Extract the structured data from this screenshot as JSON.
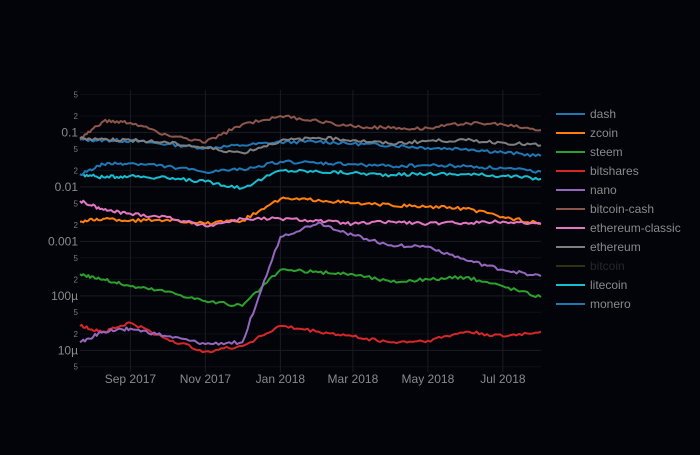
{
  "chart_data": {
    "type": "line",
    "title": "",
    "xlabel": "",
    "ylabel": "",
    "yscale": "log",
    "ylim": [
      4e-06,
      0.6
    ],
    "xlim": [
      "2017-07-22",
      "2018-08-01"
    ],
    "grid": true,
    "legend_position": "right",
    "x_ticks": [
      "2017-09-01",
      "2017-11-01",
      "2018-01-01",
      "2018-03-01",
      "2018-05-01",
      "2018-07-01"
    ],
    "x_tick_labels": [
      "Sep 2017",
      "Nov 2017",
      "Jan 2018",
      "Mar 2018",
      "May 2018",
      "Jul 2018"
    ],
    "y_major_ticks": [
      0.1,
      0.01,
      0.001,
      0.0001,
      1e-05
    ],
    "y_major_labels": [
      "0.1",
      "0.01",
      "0.001",
      "100µ",
      "10µ"
    ],
    "y_minor_ticks": [
      0.5,
      0.2,
      0.05,
      0.02,
      0.005,
      0.002,
      0.0005,
      0.0002,
      5e-05,
      2e-05,
      5e-06
    ],
    "y_minor_labels": [
      "5",
      "2",
      "5",
      "2",
      "5",
      "2",
      "5",
      "2",
      "5",
      "2",
      "5"
    ],
    "series": [
      {
        "name": "dash",
        "color": "#1f77b4",
        "visible": true,
        "x": [
          "2017-07-22",
          "2017-08-10",
          "2017-09-01",
          "2017-10-01",
          "2017-11-01",
          "2017-12-01",
          "2018-01-01",
          "2018-02-01",
          "2018-03-01",
          "2018-04-01",
          "2018-05-01",
          "2018-06-01",
          "2018-07-01",
          "2018-08-01"
        ],
        "y": [
          0.073,
          0.072,
          0.07,
          0.061,
          0.052,
          0.058,
          0.066,
          0.068,
          0.062,
          0.058,
          0.052,
          0.05,
          0.043,
          0.037
        ]
      },
      {
        "name": "zcoin",
        "color": "#ff7f0e",
        "visible": true,
        "x": [
          "2017-07-22",
          "2017-08-10",
          "2017-09-01",
          "2017-10-01",
          "2017-11-01",
          "2017-12-01",
          "2018-01-01",
          "2018-02-01",
          "2018-03-01",
          "2018-04-01",
          "2018-05-01",
          "2018-06-01",
          "2018-07-01",
          "2018-08-01"
        ],
        "y": [
          0.0023,
          0.0026,
          0.0024,
          0.0025,
          0.0021,
          0.0024,
          0.006,
          0.0058,
          0.005,
          0.0046,
          0.0043,
          0.004,
          0.0028,
          0.0021
        ]
      },
      {
        "name": "steem",
        "color": "#2ca02c",
        "visible": true,
        "x": [
          "2017-07-22",
          "2017-08-10",
          "2017-09-01",
          "2017-10-01",
          "2017-11-01",
          "2017-12-01",
          "2018-01-01",
          "2018-02-01",
          "2018-03-01",
          "2018-04-01",
          "2018-05-01",
          "2018-06-01",
          "2018-07-01",
          "2018-08-01"
        ],
        "y": [
          0.00025,
          0.0002,
          0.00015,
          0.00012,
          8e-05,
          6.5e-05,
          0.0003,
          0.00027,
          0.00025,
          0.00018,
          0.0002,
          0.00022,
          0.00015,
          9.5e-05
        ]
      },
      {
        "name": "bitshares",
        "color": "#d62728",
        "visible": true,
        "x": [
          "2017-07-22",
          "2017-08-10",
          "2017-09-01",
          "2017-10-01",
          "2017-11-01",
          "2017-12-01",
          "2018-01-01",
          "2018-02-01",
          "2018-03-01",
          "2018-04-01",
          "2018-05-01",
          "2018-06-01",
          "2018-07-01",
          "2018-08-01"
        ],
        "y": [
          2.8e-05,
          2.2e-05,
          3.2e-05,
          1.6e-05,
          9.5e-06,
          1.2e-05,
          2.8e-05,
          2.2e-05,
          1.8e-05,
          1.4e-05,
          1.5e-05,
          2.2e-05,
          1.8e-05,
          2.2e-05
        ]
      },
      {
        "name": "nano",
        "color": "#9467bd",
        "visible": true,
        "x": [
          "2017-07-22",
          "2017-08-10",
          "2017-09-01",
          "2017-10-01",
          "2017-11-01",
          "2017-12-01",
          "2018-01-01",
          "2018-02-01",
          "2018-03-01",
          "2018-04-01",
          "2018-05-01",
          "2018-06-01",
          "2018-07-01",
          "2018-08-01"
        ],
        "y": [
          1.4e-05,
          2.2e-05,
          2.5e-05,
          1.8e-05,
          1.3e-05,
          1.4e-05,
          0.0012,
          0.0022,
          0.0013,
          0.00085,
          0.0008,
          0.00045,
          0.0003,
          0.00023
        ]
      },
      {
        "name": "bitcoin-cash",
        "color": "#8c564b",
        "visible": true,
        "x": [
          "2017-07-22",
          "2017-08-10",
          "2017-09-01",
          "2017-10-01",
          "2017-11-01",
          "2017-12-01",
          "2018-01-01",
          "2018-02-01",
          "2018-03-01",
          "2018-04-01",
          "2018-05-01",
          "2018-06-01",
          "2018-07-01",
          "2018-08-01"
        ],
        "y": [
          0.075,
          0.16,
          0.15,
          0.09,
          0.065,
          0.14,
          0.2,
          0.16,
          0.13,
          0.12,
          0.12,
          0.15,
          0.14,
          0.11
        ]
      },
      {
        "name": "ethereum-classic",
        "color": "#e377c2",
        "visible": true,
        "x": [
          "2017-07-22",
          "2017-08-10",
          "2017-09-01",
          "2017-10-01",
          "2017-11-01",
          "2017-12-01",
          "2018-01-01",
          "2018-02-01",
          "2018-03-01",
          "2018-04-01",
          "2018-05-01",
          "2018-06-01",
          "2018-07-01",
          "2018-08-01"
        ],
        "y": [
          0.0055,
          0.0038,
          0.0032,
          0.0028,
          0.0019,
          0.0026,
          0.0026,
          0.0024,
          0.0021,
          0.0023,
          0.0021,
          0.0022,
          0.0023,
          0.0021
        ]
      },
      {
        "name": "ethereum",
        "color": "#7f7f7f",
        "visible": true,
        "x": [
          "2017-07-22",
          "2017-08-10",
          "2017-09-01",
          "2017-10-01",
          "2017-11-01",
          "2017-12-01",
          "2018-01-01",
          "2018-02-01",
          "2018-03-01",
          "2018-04-01",
          "2018-05-01",
          "2018-06-01",
          "2018-07-01",
          "2018-08-01"
        ],
        "y": [
          0.078,
          0.075,
          0.072,
          0.065,
          0.052,
          0.042,
          0.07,
          0.08,
          0.072,
          0.062,
          0.07,
          0.072,
          0.065,
          0.058
        ]
      },
      {
        "name": "bitcoin",
        "color": "#bcbd22",
        "visible": false,
        "x": [],
        "y": []
      },
      {
        "name": "litecoin",
        "color": "#17becf",
        "visible": true,
        "x": [
          "2017-07-22",
          "2017-08-10",
          "2017-09-01",
          "2017-10-01",
          "2017-11-01",
          "2017-12-01",
          "2018-01-01",
          "2018-02-01",
          "2018-03-01",
          "2018-04-01",
          "2018-05-01",
          "2018-06-01",
          "2018-07-01",
          "2018-08-01"
        ],
        "y": [
          0.017,
          0.015,
          0.016,
          0.0145,
          0.0125,
          0.0095,
          0.02,
          0.019,
          0.018,
          0.0165,
          0.0175,
          0.017,
          0.016,
          0.014
        ]
      },
      {
        "name": "monero",
        "color": "#1f77b4",
        "visible": true,
        "x": [
          "2017-07-22",
          "2017-08-10",
          "2017-09-01",
          "2017-10-01",
          "2017-11-01",
          "2017-12-01",
          "2018-01-01",
          "2018-02-01",
          "2018-03-01",
          "2018-04-01",
          "2018-05-01",
          "2018-06-01",
          "2018-07-01",
          "2018-08-01"
        ],
        "y": [
          0.017,
          0.026,
          0.027,
          0.024,
          0.0185,
          0.021,
          0.029,
          0.027,
          0.026,
          0.024,
          0.025,
          0.024,
          0.022,
          0.019
        ]
      }
    ]
  }
}
